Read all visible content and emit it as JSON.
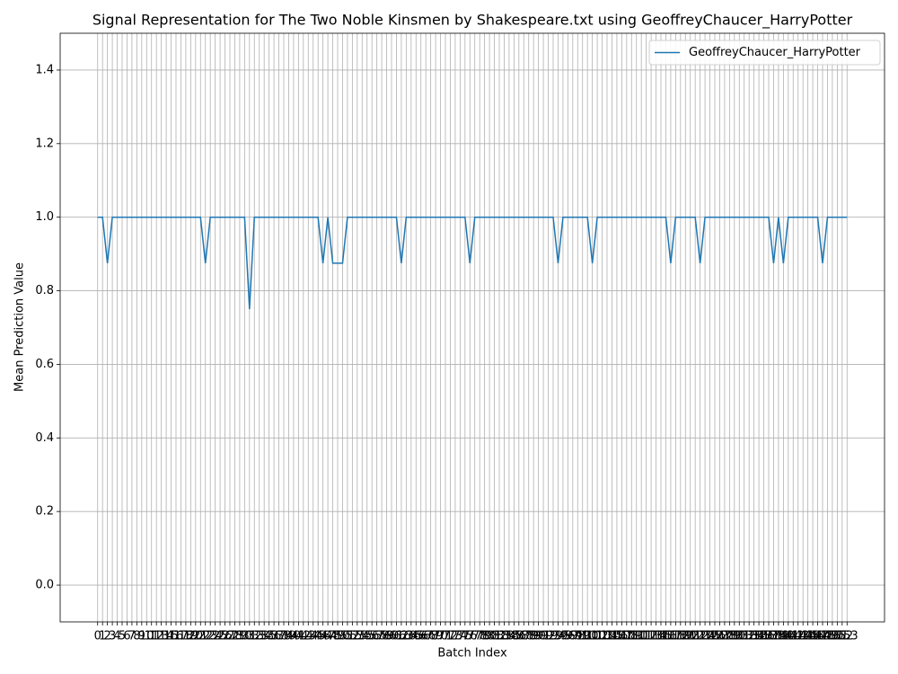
{
  "chart_data": {
    "type": "line",
    "title": "Signal Representation for The Two Noble Kinsmen by Shakespeare.txt using GeoffreyChaucer_HarryPotter",
    "xlabel": "Batch Index",
    "ylabel": "Mean Prediction Value",
    "x": [
      0,
      1,
      2,
      3,
      4,
      5,
      6,
      7,
      8,
      9,
      10,
      11,
      12,
      13,
      14,
      15,
      16,
      17,
      18,
      19,
      20,
      21,
      22,
      23,
      24,
      25,
      26,
      27,
      28,
      29,
      30,
      31,
      32,
      33,
      34,
      35,
      36,
      37,
      38,
      39,
      40,
      41,
      42,
      43,
      44,
      45,
      46,
      47,
      48,
      49,
      50,
      51,
      52,
      53,
      54,
      55,
      56,
      57,
      58,
      59,
      60,
      61,
      62,
      63,
      64,
      65,
      66,
      67,
      68,
      69,
      70,
      71,
      72,
      73,
      74,
      75,
      76,
      77,
      78,
      79,
      80,
      81,
      82,
      83,
      84,
      85,
      86,
      87,
      88,
      89,
      90,
      91,
      92,
      93,
      94,
      95,
      96,
      97,
      98,
      99,
      100,
      101,
      102,
      103,
      104,
      105,
      106,
      107,
      108,
      109,
      110,
      111,
      112,
      113,
      114,
      115,
      116,
      117,
      118,
      119,
      120,
      121,
      122,
      123,
      124,
      125,
      126,
      127,
      128,
      129,
      130,
      131,
      132,
      133,
      134,
      135,
      136,
      137,
      138,
      139,
      140,
      141,
      142,
      143,
      144,
      145,
      146,
      147,
      148,
      149,
      150,
      151,
      152,
      153
    ],
    "series": [
      {
        "name": "GeoffreyChaucer_HarryPotter",
        "color": "#1f77b4",
        "values": [
          1,
          1,
          0.875,
          1,
          1,
          1,
          1,
          1,
          1,
          1,
          1,
          1,
          1,
          1,
          1,
          1,
          1,
          1,
          1,
          1,
          1,
          1,
          0.875,
          1,
          1,
          1,
          1,
          1,
          1,
          1,
          1,
          0.75,
          1,
          1,
          1,
          1,
          1,
          1,
          1,
          1,
          1,
          1,
          1,
          1,
          1,
          1,
          0.875,
          1,
          0.875,
          0.875,
          0.875,
          1,
          1,
          1,
          1,
          1,
          1,
          1,
          1,
          1,
          1,
          1,
          0.875,
          1,
          1,
          1,
          1,
          1,
          1,
          1,
          1,
          1,
          1,
          1,
          1,
          1,
          0.875,
          1,
          1,
          1,
          1,
          1,
          1,
          1,
          1,
          1,
          1,
          1,
          1,
          1,
          1,
          1,
          1,
          1,
          0.875,
          1,
          1,
          1,
          1,
          1,
          1,
          0.875,
          1,
          1,
          1,
          1,
          1,
          1,
          1,
          1,
          1,
          1,
          1,
          1,
          1,
          1,
          1,
          0.875,
          1,
          1,
          1,
          1,
          1,
          0.875,
          1,
          1,
          1,
          1,
          1,
          1,
          1,
          1,
          1,
          1,
          1,
          1,
          1,
          1,
          0.875,
          1,
          0.875,
          1,
          1,
          1,
          1,
          1,
          1,
          1,
          0.875,
          1,
          1,
          1,
          1,
          1
        ]
      }
    ],
    "xlim": [
      -7.65,
      160.65
    ],
    "xticks": [
      0,
      1,
      2,
      3,
      4,
      5,
      6,
      7,
      8,
      9,
      10,
      11,
      12,
      13,
      14,
      15,
      16,
      17,
      18,
      19,
      20,
      21,
      22,
      23,
      24,
      25,
      26,
      27,
      28,
      29,
      30,
      31,
      32,
      33,
      34,
      35,
      36,
      37,
      38,
      39,
      40,
      41,
      42,
      43,
      44,
      45,
      46,
      47,
      48,
      49,
      50,
      51,
      52,
      53,
      54,
      55,
      56,
      57,
      58,
      59,
      60,
      61,
      62,
      63,
      64,
      65,
      66,
      67,
      68,
      69,
      70,
      71,
      72,
      73,
      74,
      75,
      76,
      77,
      78,
      79,
      80,
      81,
      82,
      83,
      84,
      85,
      86,
      87,
      88,
      89,
      90,
      91,
      92,
      93,
      94,
      95,
      96,
      97,
      98,
      99,
      100,
      101,
      102,
      103,
      104,
      105,
      106,
      107,
      108,
      109,
      110,
      111,
      112,
      113,
      114,
      115,
      116,
      117,
      118,
      119,
      120,
      121,
      122,
      123,
      124,
      125,
      126,
      127,
      128,
      129,
      130,
      131,
      132,
      133,
      134,
      135,
      136,
      137,
      138,
      139,
      140,
      141,
      142,
      143,
      144,
      145,
      146,
      147,
      148,
      149,
      150,
      151,
      152,
      153
    ],
    "ylim": [
      -0.1,
      1.5
    ],
    "yticks": [
      {
        "value": 0,
        "label": "0.0"
      },
      0.2,
      0.4,
      0.6,
      0.8,
      {
        "value": 1,
        "label": "1.0"
      },
      1.2,
      1.4
    ],
    "grid": true,
    "legend": "upper right"
  }
}
